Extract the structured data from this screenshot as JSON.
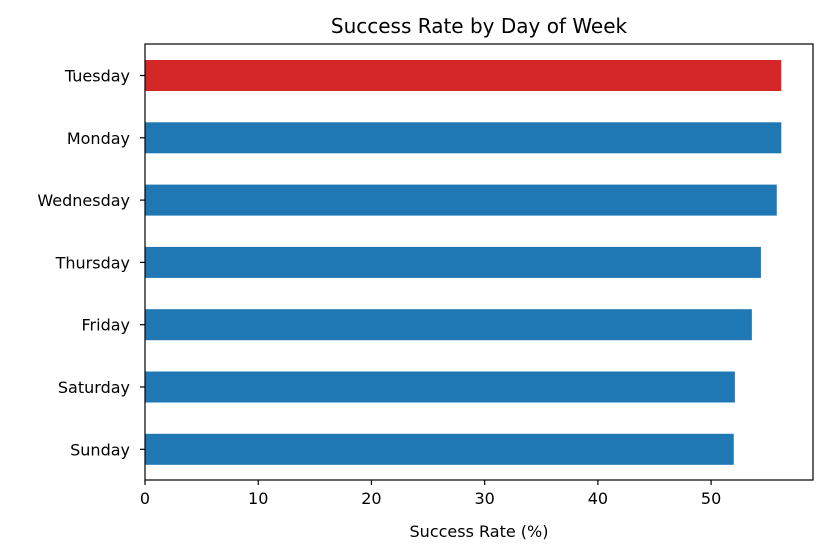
{
  "chart_data": {
    "type": "bar",
    "orientation": "horizontal",
    "title": "Success Rate by Day of Week",
    "xlabel": "Success Rate (%)",
    "ylabel": "",
    "xlim": [
      0,
      59
    ],
    "xticks": [
      0,
      10,
      20,
      30,
      40,
      50
    ],
    "grid": false,
    "legend": "none",
    "categories": [
      "Tuesday",
      "Monday",
      "Wednesday",
      "Thursday",
      "Friday",
      "Saturday",
      "Sunday"
    ],
    "values": [
      56.2,
      56.2,
      55.8,
      54.4,
      53.6,
      52.1,
      52.0
    ],
    "highlight_index": 0,
    "colors": {
      "default": "#1f77b4",
      "highlight": "#d62728"
    }
  }
}
